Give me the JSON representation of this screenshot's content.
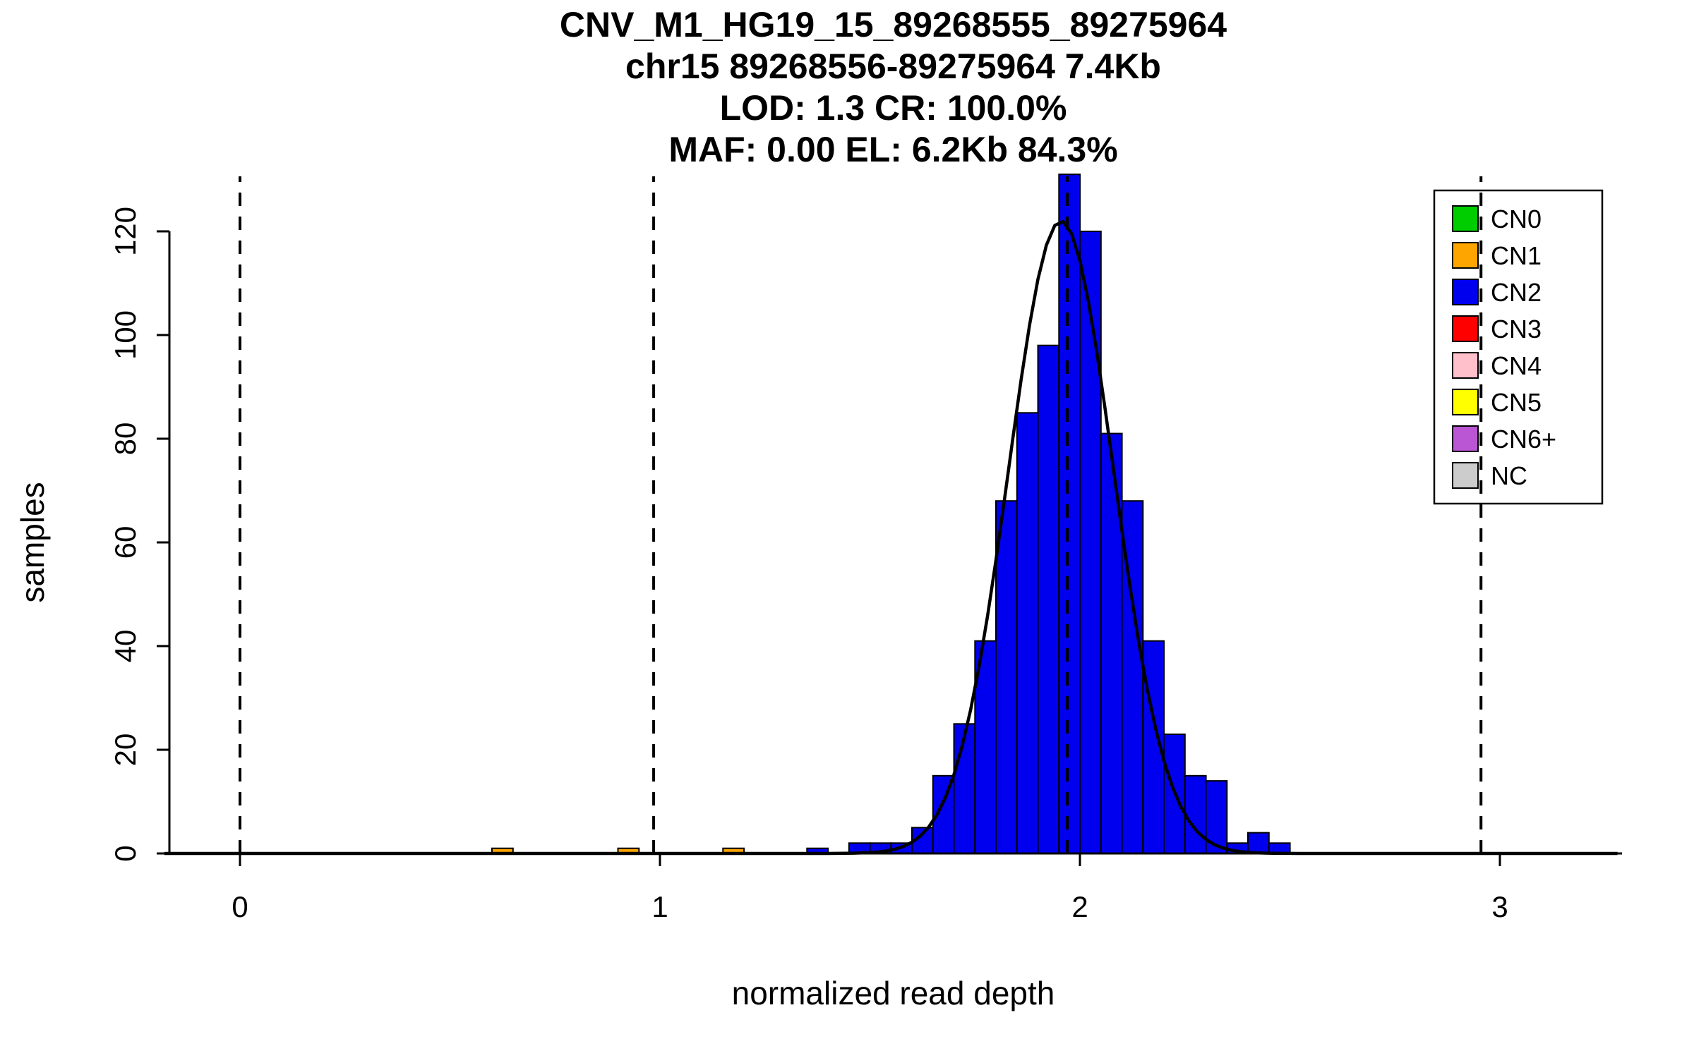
{
  "chart_data": {
    "type": "bar",
    "subtype": "histogram-with-gaussian-fit",
    "title_lines": [
      "CNV_M1_HG19_15_89268555_89275964",
      "chr15 89268556-89275964 7.4Kb",
      "LOD: 1.3 CR: 100.0%",
      "MAF: 0.00 EL: 6.2Kb 84.3%"
    ],
    "xlabel": "normalized read depth",
    "ylabel": "samples",
    "xticks": [
      0,
      1,
      2,
      3
    ],
    "yticks": [
      0,
      20,
      40,
      60,
      80,
      100,
      120
    ],
    "xlim": [
      -0.18,
      3.29
    ],
    "ylim": [
      0,
      131
    ],
    "grid": false,
    "bin_width": 0.05,
    "bars": [
      {
        "x": 0.6,
        "h": 1,
        "cn": "CN1"
      },
      {
        "x": 0.9,
        "h": 1,
        "cn": "CN1"
      },
      {
        "x": 1.15,
        "h": 1,
        "cn": "CN1"
      },
      {
        "x": 1.35,
        "h": 1,
        "cn": "CN2"
      },
      {
        "x": 1.45,
        "h": 2,
        "cn": "CN2"
      },
      {
        "x": 1.5,
        "h": 2,
        "cn": "CN2"
      },
      {
        "x": 1.55,
        "h": 2,
        "cn": "CN2"
      },
      {
        "x": 1.6,
        "h": 5,
        "cn": "CN2"
      },
      {
        "x": 1.65,
        "h": 15,
        "cn": "CN2"
      },
      {
        "x": 1.7,
        "h": 25,
        "cn": "CN2"
      },
      {
        "x": 1.75,
        "h": 41,
        "cn": "CN2"
      },
      {
        "x": 1.8,
        "h": 68,
        "cn": "CN2"
      },
      {
        "x": 1.85,
        "h": 85,
        "cn": "CN2"
      },
      {
        "x": 1.9,
        "h": 98,
        "cn": "CN2"
      },
      {
        "x": 1.95,
        "h": 131,
        "cn": "CN2"
      },
      {
        "x": 2.0,
        "h": 120,
        "cn": "CN2"
      },
      {
        "x": 2.05,
        "h": 81,
        "cn": "CN2"
      },
      {
        "x": 2.1,
        "h": 68,
        "cn": "CN2"
      },
      {
        "x": 2.15,
        "h": 41,
        "cn": "CN2"
      },
      {
        "x": 2.2,
        "h": 23,
        "cn": "CN2"
      },
      {
        "x": 2.25,
        "h": 15,
        "cn": "CN2"
      },
      {
        "x": 2.3,
        "h": 14,
        "cn": "CN2"
      },
      {
        "x": 2.35,
        "h": 2,
        "cn": "CN2"
      },
      {
        "x": 2.4,
        "h": 4,
        "cn": "CN2"
      },
      {
        "x": 2.45,
        "h": 2,
        "cn": "CN2"
      }
    ],
    "dashed_lines_x": [
      0,
      0.985,
      1.97,
      2.955
    ],
    "fit_curve": {
      "type": "gaussian",
      "mean": 1.955,
      "sd": 0.125,
      "peak": 122
    },
    "colors": {
      "CN0": "#00CD00",
      "CN1": "#FFA500",
      "CN2": "#0000EE",
      "CN3": "#FF0000",
      "CN4": "#FFC0CB",
      "CN5": "#FFFF00",
      "CN6+": "#BA55D3",
      "NC": "#CCCCCC",
      "curve": "#000000",
      "axis": "#000000"
    },
    "legend": {
      "position": "top-right",
      "entries": [
        {
          "label": "CN0",
          "cn": "CN0"
        },
        {
          "label": "CN1",
          "cn": "CN1"
        },
        {
          "label": "CN2",
          "cn": "CN2"
        },
        {
          "label": "CN3",
          "cn": "CN3"
        },
        {
          "label": "CN4",
          "cn": "CN4"
        },
        {
          "label": "CN5",
          "cn": "CN5"
        },
        {
          "label": "CN6+",
          "cn": "CN6+"
        },
        {
          "label": "NC",
          "cn": "NC"
        }
      ]
    }
  }
}
